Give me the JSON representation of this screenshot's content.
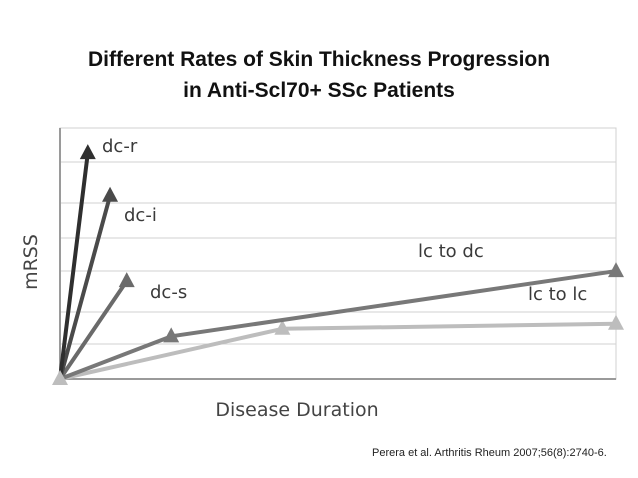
{
  "title_line1": "Different Rates of Skin Thickness Progression",
  "title_line2": "in Anti-Scl70+ SSc Patients",
  "citation": "Perera et al. Arthritis Rheum 2007;56(8):2740-6.",
  "chart_data": {
    "type": "line",
    "xlabel": "Disease Duration",
    "ylabel": "mRSS",
    "xlim": [
      0,
      100
    ],
    "ylim": [
      0,
      100
    ],
    "grid": true,
    "series": [
      {
        "name": "dc-r",
        "color": "#2f2f2f",
        "points": [
          [
            0,
            0
          ],
          [
            5,
            90
          ]
        ]
      },
      {
        "name": "dc-i",
        "color": "#4a4a4a",
        "points": [
          [
            0,
            0
          ],
          [
            9,
            73
          ]
        ]
      },
      {
        "name": "dc-s",
        "color": "#6a6a6a",
        "points": [
          [
            0,
            0
          ],
          [
            12,
            39
          ]
        ]
      },
      {
        "name": "lc to dc",
        "color": "#787878",
        "points": [
          [
            0,
            0
          ],
          [
            20,
            17
          ],
          [
            100,
            43
          ]
        ]
      },
      {
        "name": "lc to lc",
        "color": "#bdbdbd",
        "points": [
          [
            0,
            0
          ],
          [
            40,
            20
          ],
          [
            100,
            22
          ]
        ]
      }
    ]
  }
}
